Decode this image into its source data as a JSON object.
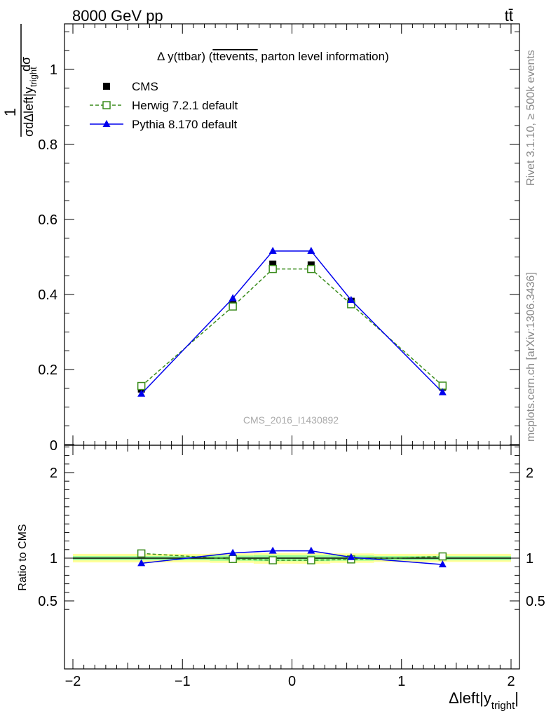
{
  "header": {
    "energy_label": "8000 GeV pp",
    "process_label": "tt̄"
  },
  "side_labels": {
    "rivet": "Rivet 3.1.10, ≥ 500k events",
    "source": "mcplots.cern.ch [arXiv:1306.3436]"
  },
  "watermark": "CMS_2016_I1430892",
  "chart_data": [
    {
      "type": "line",
      "panel": "main",
      "title_prefix": "Δ y(ttbar) (",
      "title_overline": "ttevents,",
      "title_suffix": " parton level information)",
      "ylabel_num": "dσ",
      "ylabel_den": "σdΔleft|y",
      "ylabel_den_sub": "tright",
      "xlim": [
        -2,
        2
      ],
      "ylim": [
        0,
        1.12
      ],
      "ytick_labels": [
        "0",
        "0.2",
        "0.4",
        "0.6",
        "0.8",
        "1"
      ],
      "ytick_values": [
        0,
        0.2,
        0.4,
        0.6,
        0.8,
        1.0
      ],
      "legend_position": "top-left",
      "x": [
        -1.375,
        -0.54,
        -0.175,
        0.175,
        0.54,
        1.375
      ],
      "series": [
        {
          "name": "CMS",
          "style": "data",
          "color": "#000000",
          "values": [
            0.148,
            0.373,
            0.481,
            0.479,
            0.382,
            0.153
          ]
        },
        {
          "name": "Herwig 7.2.1 default",
          "style": "dashed-open-square",
          "color": "#3a8c1c",
          "values": [
            0.156,
            0.368,
            0.468,
            0.468,
            0.374,
            0.157
          ]
        },
        {
          "name": "Pythia 8.170 default",
          "style": "solid-triangle",
          "color": "#0000ee",
          "values": [
            0.135,
            0.39,
            0.516,
            0.516,
            0.385,
            0.139
          ]
        }
      ]
    },
    {
      "type": "line",
      "panel": "ratio",
      "ylabel": "Ratio to CMS",
      "xlabel": "Δleft|y",
      "xlabel_sub": "tright",
      "xlabel_end": "|",
      "xlim": [
        -2,
        2
      ],
      "ylim": [
        0.35,
        2.35
      ],
      "xtick_values": [
        -2,
        -1,
        0,
        1,
        2
      ],
      "xtick_labels": [
        "−2",
        "−1",
        "0",
        "1",
        "2"
      ],
      "ytick_values": [
        0.5,
        1,
        2
      ],
      "ytick_labels": [
        "0.5",
        "1",
        "2"
      ],
      "band_colors": {
        "outer": "#ffff99",
        "inner": "#99ff99"
      },
      "bands": [
        {
          "x0": -2.0,
          "x1": -0.75,
          "outer": [
            0.95,
            1.05
          ],
          "inner": [
            0.975,
            1.025
          ]
        },
        {
          "x0": -0.75,
          "x1": -0.35,
          "outer": [
            0.945,
            1.055
          ],
          "inner": [
            0.97,
            1.03
          ]
        },
        {
          "x0": -0.35,
          "x1": 0.0,
          "outer": [
            0.935,
            1.06
          ],
          "inner": [
            0.965,
            1.035
          ]
        },
        {
          "x0": 0.0,
          "x1": 0.35,
          "outer": [
            0.935,
            1.06
          ],
          "inner": [
            0.965,
            1.035
          ]
        },
        {
          "x0": 0.35,
          "x1": 0.75,
          "outer": [
            0.945,
            1.055
          ],
          "inner": [
            0.97,
            1.03
          ]
        },
        {
          "x0": 0.75,
          "x1": 2.0,
          "outer": [
            0.955,
            1.05
          ],
          "inner": [
            0.975,
            1.025
          ]
        }
      ],
      "x": [
        -1.375,
        -0.54,
        -0.175,
        0.175,
        0.54,
        1.375
      ],
      "series": [
        {
          "name": "Herwig 7.2.1 default",
          "style": "dashed-open-square",
          "color": "#3a8c1c",
          "values": [
            1.055,
            0.99,
            0.975,
            0.975,
            0.985,
            1.02
          ]
        },
        {
          "name": "Pythia 8.170 default",
          "style": "solid-triangle",
          "color": "#0000ee",
          "values": [
            0.94,
            1.06,
            1.085,
            1.085,
            1.01,
            0.925
          ]
        }
      ]
    }
  ]
}
